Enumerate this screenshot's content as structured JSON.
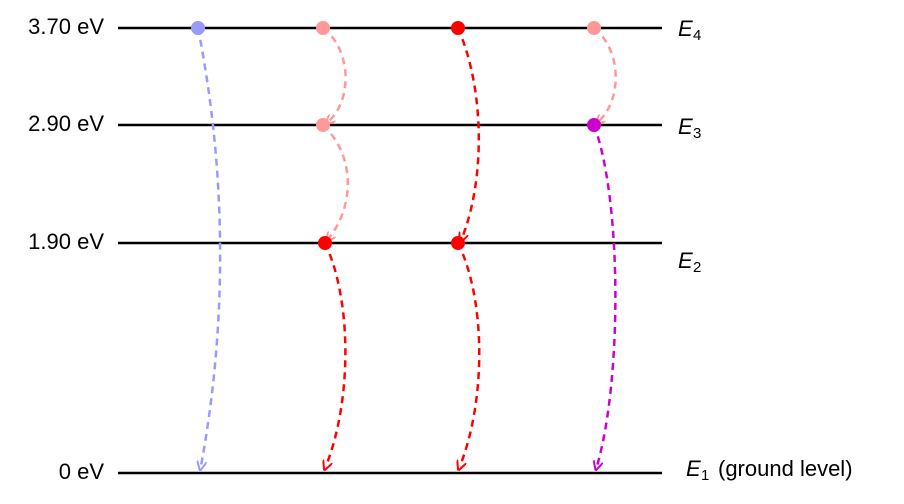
{
  "levels": [
    {
      "energy_label": "3.70 eV",
      "symbol": "E",
      "subscript": "4"
    },
    {
      "energy_label": "2.90 eV",
      "symbol": "E",
      "subscript": "3"
    },
    {
      "energy_label": "1.90 eV",
      "symbol": "E",
      "subscript": "2"
    },
    {
      "energy_label": "0 eV",
      "symbol": "E",
      "subscript": "1",
      "note": "(ground level)"
    }
  ]
}
